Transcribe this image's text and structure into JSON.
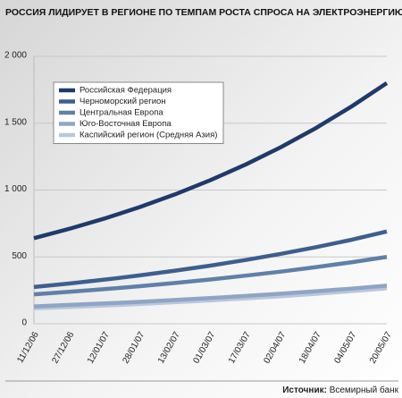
{
  "chart_data": {
    "type": "line",
    "title": "РОССИЯ ЛИДИРУЕТ В РЕГИОНЕ ПО ТЕМПАМ РОСТА СПРОСА НА ЭЛЕКТРОЭНЕРГИЮ, ТВт/ч",
    "source_label": "Источник:",
    "source": "Всемирный банк",
    "categories": [
      "11/12/06",
      "27/12/06",
      "12/01/07",
      "28/01/07",
      "13/02/07",
      "01/03/07",
      "17/03/07",
      "02/04/07",
      "18/04/07",
      "04/05/07",
      "20/05/07"
    ],
    "series": [
      {
        "name": "Российская Федерация",
        "color": "#1f3a6b",
        "values": [
          640,
          710,
          787,
          873,
          968,
          1074,
          1191,
          1321,
          1465,
          1625,
          1800
        ]
      },
      {
        "name": "Черноморский регион",
        "color": "#3d5f8e",
        "values": [
          275,
          301,
          330,
          362,
          397,
          435,
          477,
          523,
          573,
          628,
          690
        ]
      },
      {
        "name": "Центральная Европа",
        "color": "#6080a8",
        "values": [
          220,
          239,
          259,
          281,
          305,
          331,
          360,
          390,
          424,
          460,
          500
        ]
      },
      {
        "name": "Юго-Восточная Европа",
        "color": "#8fa5c6",
        "values": [
          130,
          141,
          152,
          164,
          178,
          192,
          208,
          225,
          243,
          263,
          285
        ]
      },
      {
        "name": "Каспийский регион (Средняя Азия)",
        "color": "#bac7dc",
        "values": [
          115,
          125,
          136,
          148,
          161,
          175,
          190,
          206,
          224,
          244,
          265
        ]
      }
    ],
    "ylim": [
      0,
      2000
    ],
    "yticks": [
      0,
      500,
      {
        "value": 1000,
        "label": "1 000"
      },
      {
        "value": 1500,
        "label": "1 500"
      },
      {
        "value": 2000,
        "label": "2 000"
      }
    ],
    "grid": true,
    "legend": "upper left"
  }
}
